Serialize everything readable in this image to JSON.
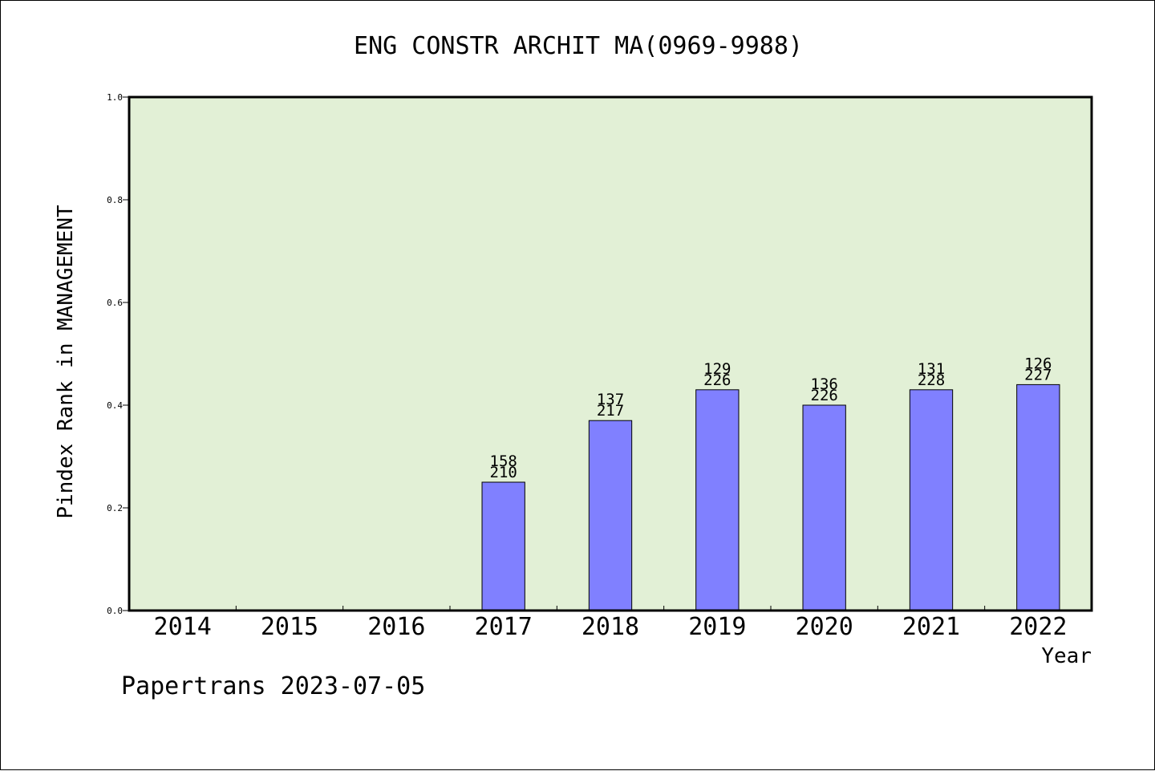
{
  "chart_data": {
    "type": "bar",
    "title": "ENG CONSTR ARCHIT MA(0969-9988)",
    "xlabel": "Year",
    "ylabel": "Pindex Rank in MANAGEMENT",
    "footer": "Papertrans 2023-07-05",
    "ylim": [
      0,
      1.0
    ],
    "yticks": [
      "0.0",
      "0.2",
      "0.4",
      "0.6",
      "0.8",
      "1.0"
    ],
    "ytick_values": [
      0,
      0.2,
      0.4,
      0.6,
      0.8,
      1.0
    ],
    "categories": [
      "2014",
      "2015",
      "2016",
      "2017",
      "2018",
      "2019",
      "2020",
      "2021",
      "2022"
    ],
    "values": [
      null,
      null,
      null,
      0.25,
      0.37,
      0.43,
      0.4,
      0.43,
      0.44
    ],
    "labels_rank": [
      "",
      "",
      "",
      "158",
      "137",
      "129",
      "136",
      "131",
      "126"
    ],
    "labels_total": [
      "",
      "",
      "",
      "210",
      "217",
      "226",
      "226",
      "228",
      "227"
    ],
    "grid": false,
    "colors": {
      "plot_bg": "#e2f0d6",
      "bar": "#8080ff",
      "axis": "#000000"
    }
  }
}
